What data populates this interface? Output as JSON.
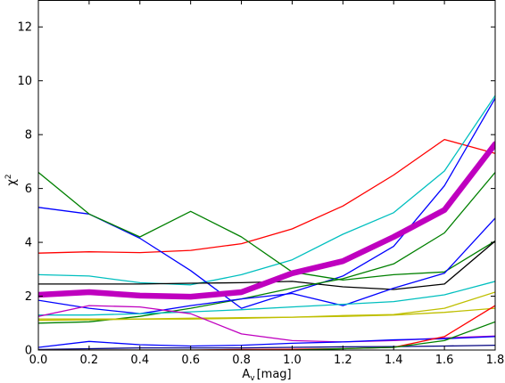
{
  "chart_data": {
    "type": "line",
    "xlabel": "A",
    "xlabel_subscript": "v",
    "xlabel_unit": "[mag]",
    "ylabel": "χ",
    "ylabel_superscript": "2",
    "xlim": [
      0.0,
      1.8
    ],
    "ylim": [
      0,
      13
    ],
    "x": [
      0.0,
      0.2,
      0.4,
      0.6,
      0.8,
      1.0,
      1.2,
      1.4,
      1.6,
      1.8
    ],
    "xticks": [
      "0.0",
      "0.2",
      "0.4",
      "0.6",
      "0.8",
      "1.0",
      "1.2",
      "1.4",
      "1.6",
      "1.8"
    ],
    "yticks": [
      0,
      2,
      4,
      6,
      8,
      10,
      12
    ],
    "grid": false,
    "series": [
      {
        "color": "#ff0000",
        "width": 1.3,
        "values": [
          3.6,
          3.65,
          3.62,
          3.7,
          3.95,
          4.5,
          5.35,
          6.5,
          7.82,
          7.3
        ]
      },
      {
        "color": "#00bfbf",
        "width": 1.3,
        "values": [
          2.8,
          2.75,
          2.5,
          2.42,
          2.8,
          3.35,
          4.3,
          5.1,
          6.65,
          9.45
        ]
      },
      {
        "color": "#0000ff",
        "width": 1.3,
        "values": [
          5.3,
          5.05,
          4.15,
          2.95,
          1.55,
          2.15,
          2.75,
          3.85,
          6.1,
          9.35
        ]
      },
      {
        "color": "#008000",
        "width": 1.3,
        "values": [
          6.6,
          5.05,
          4.2,
          5.15,
          4.2,
          2.9,
          2.6,
          2.8,
          2.9,
          4.05
        ]
      },
      {
        "color": "#000000",
        "width": 1.3,
        "values": [
          2.45,
          2.45,
          2.45,
          2.48,
          2.5,
          2.55,
          2.35,
          2.25,
          2.45,
          4.05
        ]
      },
      {
        "color": "#008000",
        "width": 1.3,
        "values": [
          1.0,
          1.05,
          1.25,
          1.55,
          1.9,
          2.3,
          2.65,
          3.2,
          4.35,
          6.6
        ]
      },
      {
        "color": "#0000ff",
        "width": 1.3,
        "values": [
          1.85,
          1.55,
          1.35,
          1.65,
          1.9,
          2.1,
          1.65,
          2.3,
          2.85,
          4.9
        ]
      },
      {
        "color": "#00bfbf",
        "width": 1.3,
        "values": [
          1.3,
          1.3,
          1.35,
          1.42,
          1.5,
          1.6,
          1.7,
          1.8,
          2.05,
          2.55
        ]
      },
      {
        "color": "#bfbf00",
        "width": 1.3,
        "values": [
          1.1,
          1.12,
          1.15,
          1.18,
          1.2,
          1.22,
          1.28,
          1.32,
          1.55,
          2.15
        ]
      },
      {
        "color": "#bfbf00",
        "width": 1.3,
        "values": [
          1.15,
          1.15,
          1.15,
          1.15,
          1.18,
          1.22,
          1.25,
          1.3,
          1.4,
          1.55
        ]
      },
      {
        "color": "#bf00bf",
        "width": 1.3,
        "values": [
          1.25,
          1.65,
          1.6,
          1.35,
          0.6,
          0.35,
          0.3,
          0.35,
          0.45,
          0.52
        ]
      },
      {
        "color": "#0000ff",
        "width": 1.3,
        "values": [
          0.1,
          0.32,
          0.2,
          0.15,
          0.18,
          0.25,
          0.3,
          0.38,
          0.42,
          0.5
        ]
      },
      {
        "color": "#000080",
        "width": 1.3,
        "values": [
          0.02,
          0.05,
          0.08,
          0.08,
          0.08,
          0.1,
          0.12,
          0.13,
          0.15,
          0.18
        ]
      },
      {
        "color": "#ff0000",
        "width": 1.3,
        "values": [
          0.0,
          0.0,
          0.0,
          0.0,
          0.02,
          0.03,
          0.05,
          0.1,
          0.5,
          1.65
        ]
      },
      {
        "color": "#008000",
        "width": 1.3,
        "values": [
          0.0,
          0.0,
          0.0,
          0.0,
          0.0,
          0.0,
          0.05,
          0.1,
          0.35,
          1.05
        ]
      },
      {
        "color": "#bf00bf",
        "width": 6.5,
        "values": [
          2.05,
          2.15,
          2.02,
          1.98,
          2.15,
          2.85,
          3.3,
          4.2,
          5.2,
          7.65
        ]
      }
    ]
  }
}
